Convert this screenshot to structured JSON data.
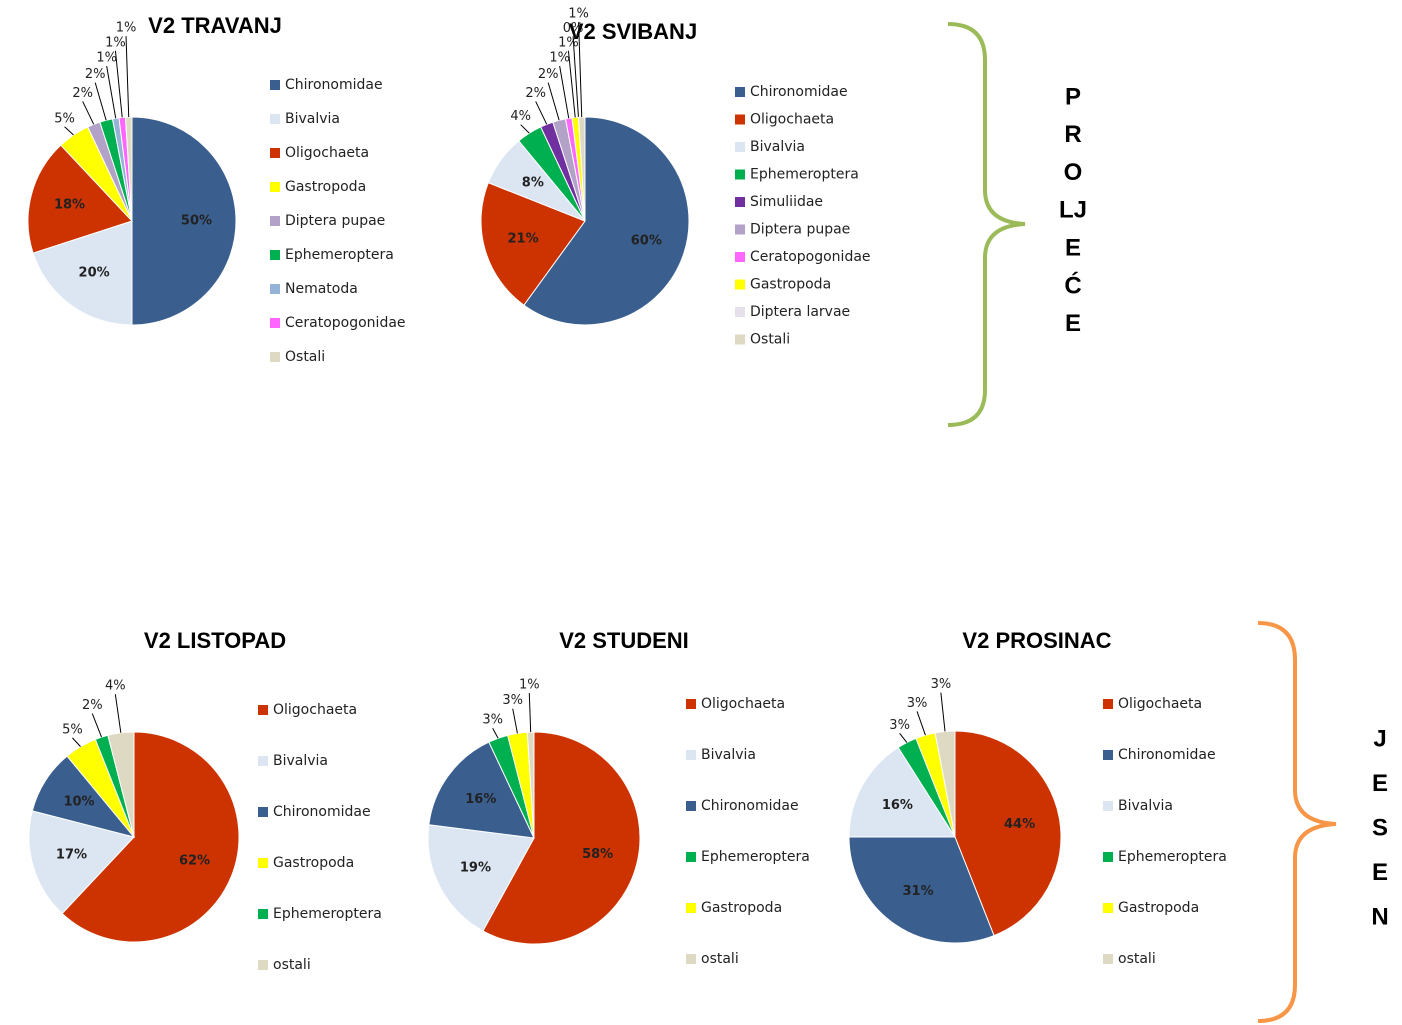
{
  "chart_data": [
    {
      "type": "pie",
      "title": "V2 TRAVANJ",
      "categories": [
        "Chironomidae",
        "Bivalvia",
        "Oligochaeta",
        "Gastropoda",
        "Diptera pupae",
        "Ephemeroptera",
        "Nematoda",
        "Ceratopogonidae",
        "Ostali"
      ],
      "values": [
        50,
        20,
        18,
        5,
        2,
        2,
        1,
        1,
        1
      ],
      "value_labels": [
        "50%",
        "20%",
        "18%",
        "5%",
        "2%",
        "2%",
        "1%",
        "1%",
        "1%"
      ],
      "colors": [
        "#3a5f8f",
        "#dce6f2",
        "#cc3300",
        "#ffff00",
        "#b3a2c7",
        "#00b050",
        "#95b3d7",
        "#ff66ff",
        "#ddd9c3"
      ]
    },
    {
      "type": "pie",
      "title": "V2 SVIBANJ",
      "categories": [
        "Chironomidae",
        "Oligochaeta",
        "Bivalvia",
        "Ephemeroptera",
        "Simuliidae",
        "Diptera pupae",
        "Ceratopogonidae",
        "Gastropoda",
        "Diptera larvae",
        "Ostali"
      ],
      "values": [
        60,
        21,
        8,
        4,
        2,
        2,
        1,
        1,
        0,
        1
      ],
      "value_labels": [
        "60%",
        "21%",
        "8%",
        "4%",
        "2%",
        "2%",
        "1%",
        "1%",
        "0%",
        "1%"
      ],
      "colors": [
        "#3a5f8f",
        "#cc3300",
        "#dce6f2",
        "#00b050",
        "#7030a0",
        "#b3a2c7",
        "#ff66ff",
        "#ffff00",
        "#e6e0ec",
        "#ddd9c3"
      ]
    },
    {
      "type": "pie",
      "title": "V2 LISTOPAD",
      "categories": [
        "Oligochaeta",
        "Bivalvia",
        "Chironomidae",
        "Gastropoda",
        "Ephemeroptera",
        "ostali"
      ],
      "values": [
        62,
        17,
        10,
        5,
        2,
        4
      ],
      "value_labels": [
        "62%",
        "17%",
        "10%",
        "5%",
        "2%",
        "4%"
      ],
      "colors": [
        "#cc3300",
        "#dce6f2",
        "#3a5f8f",
        "#ffff00",
        "#00b050",
        "#ddd9c3"
      ]
    },
    {
      "type": "pie",
      "title": "V2 STUDENI",
      "categories": [
        "Oligochaeta",
        "Bivalvia",
        "Chironomidae",
        "Ephemeroptera",
        "Gastropoda",
        "ostali"
      ],
      "values": [
        58,
        19,
        16,
        3,
        3,
        1
      ],
      "value_labels": [
        "58%",
        "19%",
        "16%",
        "3%",
        "3%",
        "1%"
      ],
      "colors": [
        "#cc3300",
        "#dce6f2",
        "#3a5f8f",
        "#00b050",
        "#ffff00",
        "#ddd9c3"
      ]
    },
    {
      "type": "pie",
      "title": "V2 PROSINAC",
      "categories": [
        "Oligochaeta",
        "Chironomidae",
        "Bivalvia",
        "Ephemeroptera",
        "Gastropoda",
        "ostali"
      ],
      "values": [
        44,
        31,
        16,
        3,
        3,
        3
      ],
      "value_labels": [
        "44%",
        "31%",
        "16%",
        "3%",
        "3%",
        "3%"
      ],
      "colors": [
        "#cc3300",
        "#3a5f8f",
        "#dce6f2",
        "#00b050",
        "#ffff00",
        "#ddd9c3"
      ]
    }
  ],
  "season_labels": [
    [
      "P",
      "R",
      "O",
      "LJ",
      "E",
      "Ć",
      "E"
    ],
    [
      "J",
      "E",
      "S",
      "E",
      "N"
    ]
  ]
}
